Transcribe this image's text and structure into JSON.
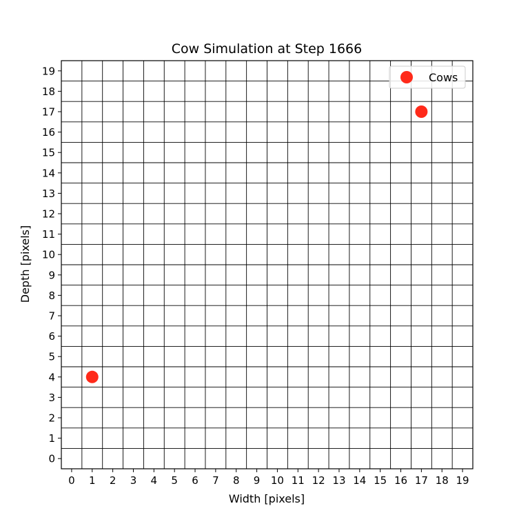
{
  "chart_data": {
    "type": "scatter",
    "title": "Cow Simulation at Step 1666",
    "xlabel": "Width [pixels]",
    "ylabel": "Depth [pixels]",
    "xlim": [
      -0.5,
      19.5
    ],
    "ylim": [
      -0.5,
      19.5
    ],
    "xticks": [
      "0",
      "1",
      "2",
      "3",
      "4",
      "5",
      "6",
      "7",
      "8",
      "9",
      "10",
      "11",
      "12",
      "13",
      "14",
      "15",
      "16",
      "17",
      "18",
      "19"
    ],
    "yticks": [
      "0",
      "1",
      "2",
      "3",
      "4",
      "5",
      "6",
      "7",
      "8",
      "9",
      "10",
      "11",
      "12",
      "13",
      "14",
      "15",
      "16",
      "17",
      "18",
      "19"
    ],
    "grid": true,
    "legend_position": "top-right",
    "series": [
      {
        "name": "Cows",
        "color": "#ff2a1a",
        "points": [
          {
            "x": 1,
            "y": 4
          },
          {
            "x": 17,
            "y": 17
          }
        ]
      }
    ]
  }
}
